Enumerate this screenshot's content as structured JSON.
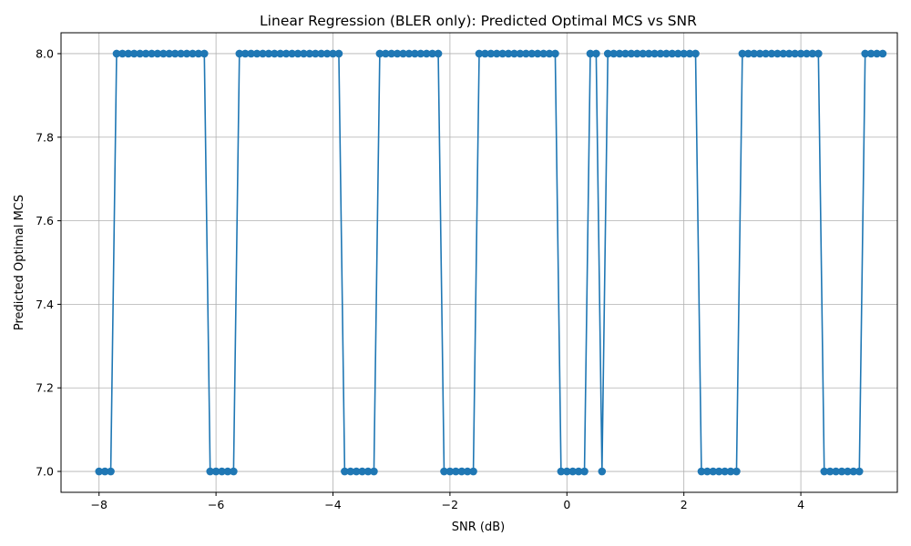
{
  "chart_data": {
    "type": "line",
    "title": "Linear Regression (BLER only): Predicted Optimal MCS vs SNR",
    "xlabel": "SNR (dB)",
    "ylabel": "Predicted Optimal MCS",
    "xlim": [
      -8.65,
      5.65
    ],
    "ylim": [
      6.95,
      8.05
    ],
    "xticks": [
      -8,
      -6,
      -4,
      -2,
      0,
      2,
      4
    ],
    "xtick_labels": [
      "−8",
      "−6",
      "−4",
      "−2",
      "0",
      "2",
      "4"
    ],
    "yticks": [
      7.0,
      7.2,
      7.4,
      7.6,
      7.8,
      8.0
    ],
    "ytick_labels": [
      "7.0",
      "7.2",
      "7.4",
      "7.6",
      "7.8",
      "8.0"
    ],
    "grid": true,
    "color": "#1f77b4",
    "marker": "circle",
    "x_start": -8.0,
    "x_step": 0.1,
    "y": [
      7,
      7,
      7,
      8,
      8,
      8,
      8,
      8,
      8,
      8,
      8,
      8,
      8,
      8,
      8,
      8,
      8,
      8,
      8,
      7,
      7,
      7,
      7,
      7,
      8,
      8,
      8,
      8,
      8,
      8,
      8,
      8,
      8,
      8,
      8,
      8,
      8,
      8,
      8,
      8,
      8,
      8,
      7,
      7,
      7,
      7,
      7,
      7,
      8,
      8,
      8,
      8,
      8,
      8,
      8,
      8,
      8,
      8,
      8,
      7,
      7,
      7,
      7,
      7,
      7,
      8,
      8,
      8,
      8,
      8,
      8,
      8,
      8,
      8,
      8,
      8,
      8,
      8,
      8,
      7,
      7,
      7,
      7,
      7,
      8,
      8,
      7,
      8,
      8,
      8,
      8,
      8,
      8,
      8,
      8,
      8,
      8,
      8,
      8,
      8,
      8,
      8,
      8,
      7,
      7,
      7,
      7,
      7,
      7,
      7,
      8,
      8,
      8,
      8,
      8,
      8,
      8,
      8,
      8,
      8,
      8,
      8,
      8,
      8,
      7,
      7,
      7,
      7,
      7,
      7,
      7,
      8,
      8,
      8,
      8
    ]
  }
}
